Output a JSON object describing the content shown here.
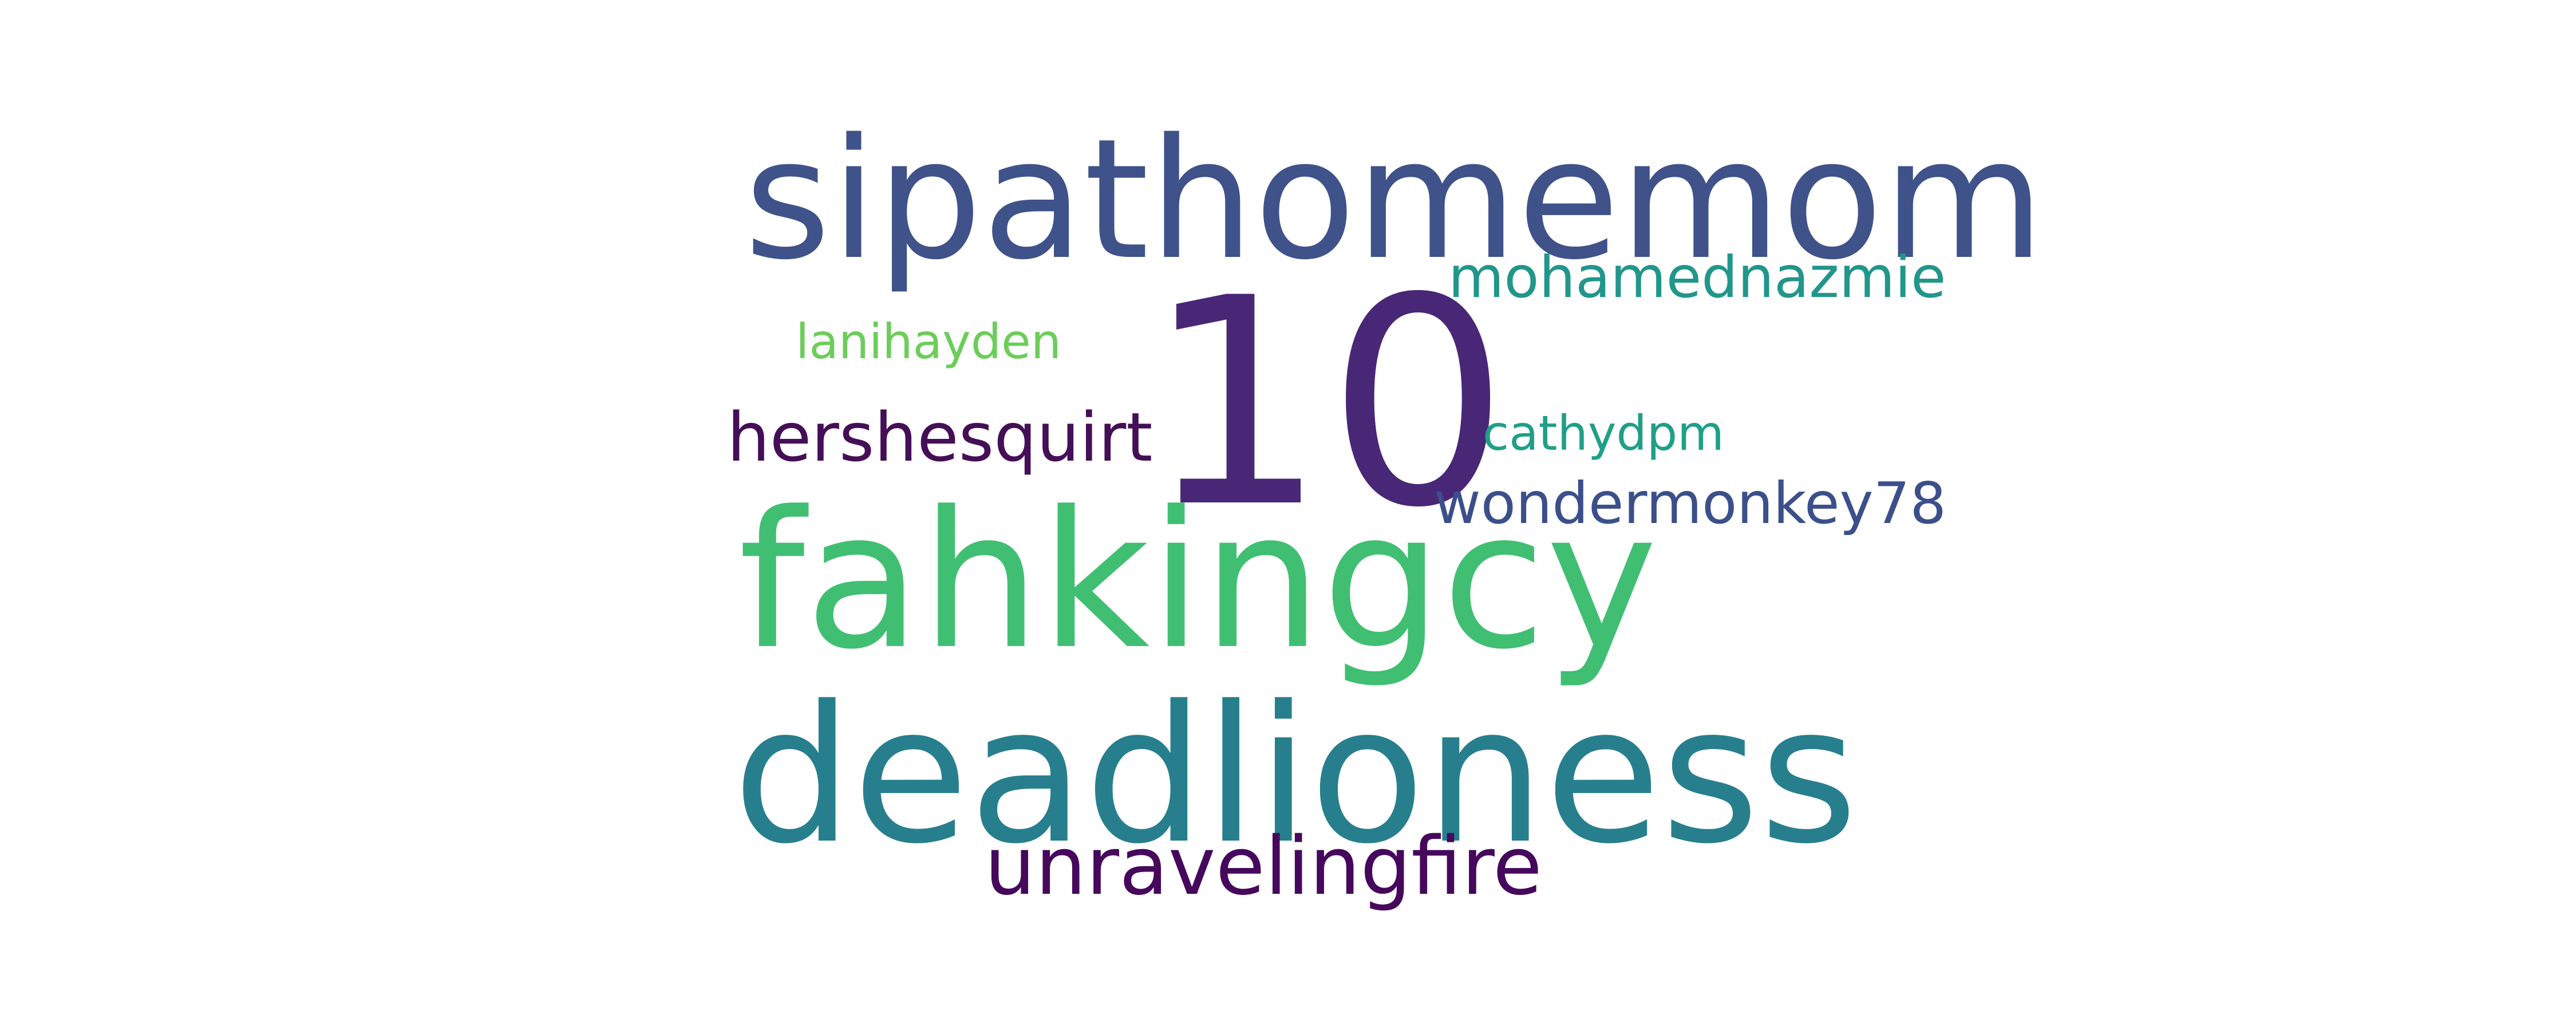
{
  "words": [
    {
      "text": "sipathomemom",
      "color": "#3f528a"
    },
    {
      "text": "10",
      "color": "#482777"
    },
    {
      "text": "mohamednazmie",
      "color": "#21968b"
    },
    {
      "text": "lanihayden",
      "color": "#6ccd5a"
    },
    {
      "text": "hershesquirt",
      "color": "#440f56"
    },
    {
      "text": "cathydpm",
      "color": "#1f9f88"
    },
    {
      "text": "wondermonkey78",
      "color": "#3b4f8a"
    },
    {
      "text": "fahkingcy",
      "color": "#40bf72"
    },
    {
      "text": "deadlioness",
      "color": "#277f8e"
    },
    {
      "text": "unravelingfire",
      "color": "#46085c"
    }
  ]
}
